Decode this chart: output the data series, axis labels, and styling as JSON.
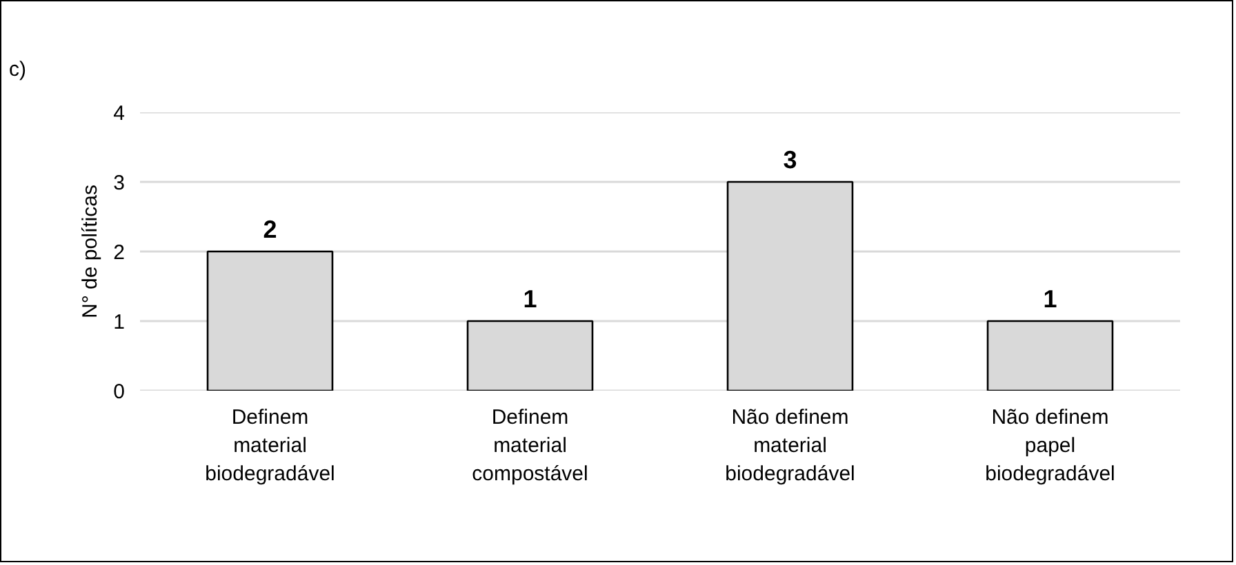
{
  "chart_data": {
    "type": "bar",
    "title": "c)",
    "ylabel": "N° de políticas",
    "categories": [
      "Definem\nmaterial\nbiodegradável",
      "Definem\nmaterial\ncompostável",
      "Não definem\nmaterial\nbiodegradável",
      "Não definem\npapel\nbiodegradável"
    ],
    "values": [
      2,
      1,
      3,
      1
    ],
    "color": "#d9d9d9",
    "ylim": [
      0,
      4
    ],
    "yticks": [
      0,
      1,
      2,
      3,
      4
    ],
    "grid": "y",
    "data_labels": true
  }
}
